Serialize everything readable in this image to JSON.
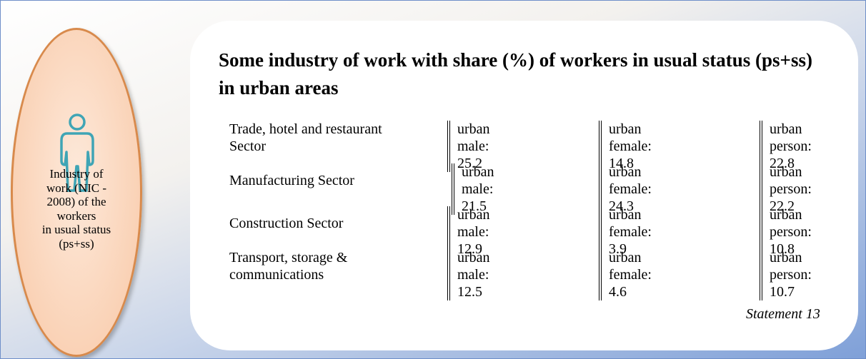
{
  "sidebar": {
    "lines": [
      "Industry of",
      "work (NIC -",
      "2008) of the",
      "workers",
      "in usual status",
      "(ps+ss)"
    ]
  },
  "title": "Some industry of work with share (%) of workers in usual status (ps+ss) in urban areas",
  "rows": [
    {
      "sector": [
        "Trade, hotel and restaurant",
        "Sector"
      ],
      "cells": [
        [
          "urban",
          "male: 25.2"
        ],
        [
          "urban",
          "female: 14.8"
        ],
        [
          "urban",
          "person: 22.8"
        ]
      ]
    },
    {
      "sector": [
        "Manufacturing Sector"
      ],
      "cells": [
        [
          "urban",
          "male: 21.5"
        ],
        [
          "urban",
          "female: 24.3"
        ],
        [
          "urban",
          "person: 22.2"
        ]
      ]
    },
    {
      "sector": [
        "Construction Sector"
      ],
      "cells": [
        [
          "urban",
          "male: 12.9"
        ],
        [
          "urban",
          "female: 3.9"
        ],
        [
          "urban",
          "person: 10.8"
        ]
      ]
    },
    {
      "sector": [
        "Transport, storage &",
        "communications"
      ],
      "cells": [
        [
          "urban",
          "male: 12.5"
        ],
        [
          "urban",
          "female: 4.6"
        ],
        [
          "urban",
          "person: 10.7"
        ]
      ]
    }
  ],
  "note": "Statement 13"
}
